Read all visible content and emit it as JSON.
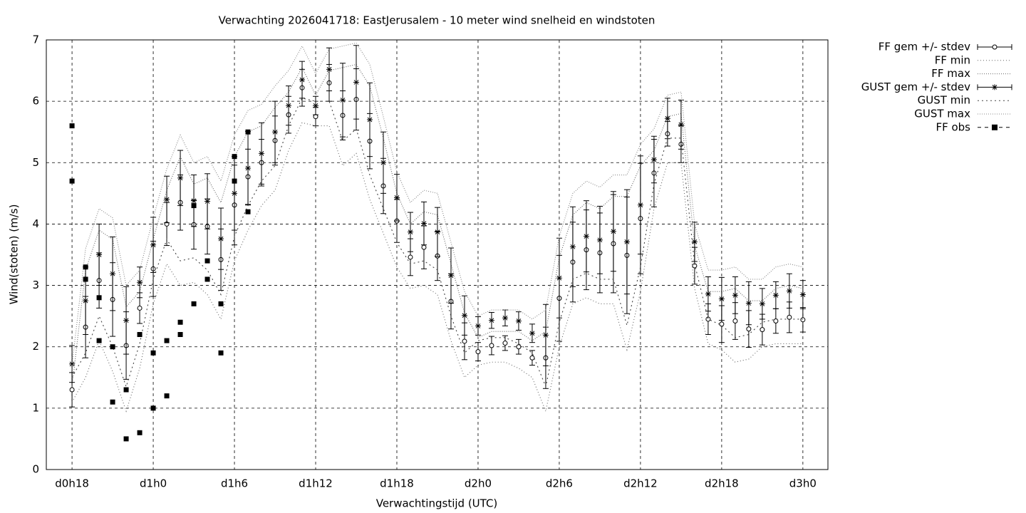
{
  "chart_data": {
    "type": "errorbar",
    "title": "Verwachting 2026041718: EastJerusalem - 10 meter wind snelheid en windstoten",
    "xlabel": "Verwachtingstijd (UTC)",
    "ylabel": "Wind(stoten) (m/s)",
    "xlim": [
      -1.9,
      55.85
    ],
    "xticks": [
      {
        "value": 0,
        "label": "d0h18"
      },
      {
        "value": 6,
        "label": "d1h0"
      },
      {
        "value": 12,
        "label": "d1h6"
      },
      {
        "value": 18,
        "label": "d1h12"
      },
      {
        "value": 24,
        "label": "d1h18"
      },
      {
        "value": 30,
        "label": "d2h0"
      },
      {
        "value": 36,
        "label": "d2h6"
      },
      {
        "value": 42,
        "label": "d2h12"
      },
      {
        "value": 48,
        "label": "d2h18"
      },
      {
        "value": 54,
        "label": "d3h0"
      }
    ],
    "ylim": [
      0,
      7
    ],
    "yticks": [
      0,
      1,
      2,
      3,
      4,
      5,
      6,
      7
    ],
    "grid": true,
    "legend": "outside-right-top",
    "x": [
      0,
      1,
      2,
      3,
      4,
      5,
      6,
      7,
      8,
      9,
      10,
      11,
      12,
      13,
      14,
      15,
      16,
      17,
      18,
      19,
      20,
      21,
      22,
      23,
      24,
      25,
      26,
      27,
      28,
      29,
      30,
      31,
      32,
      33,
      34,
      35,
      36,
      37,
      38,
      39,
      40,
      41,
      42,
      43,
      44,
      45,
      46,
      47,
      48,
      49,
      50,
      51,
      52,
      53,
      54
    ],
    "series": [
      {
        "name": "FF gem +/- stdev",
        "style": "errorbar",
        "marker": "circle",
        "color": "#000000",
        "values": [
          1.3,
          2.32,
          3.08,
          2.77,
          2.02,
          2.63,
          3.27,
          4.0,
          4.35,
          3.99,
          3.96,
          3.42,
          4.31,
          4.77,
          5.0,
          5.36,
          5.78,
          6.22,
          5.75,
          6.3,
          5.77,
          6.03,
          5.35,
          4.62,
          4.05,
          3.46,
          3.62,
          3.48,
          2.74,
          2.09,
          1.92,
          2.02,
          2.06,
          2.0,
          1.82,
          1.82,
          2.79,
          3.38,
          3.58,
          3.53,
          3.68,
          3.49,
          4.09,
          4.83,
          5.47,
          5.3,
          3.32,
          2.45,
          2.37,
          2.42,
          2.29,
          2.28,
          2.42,
          2.48,
          2.44
        ],
        "errors": [
          0.28,
          0.5,
          0.45,
          0.6,
          0.55,
          0.25,
          0.45,
          0.35,
          0.45,
          0.4,
          0.45,
          0.5,
          0.65,
          0.45,
          0.38,
          0.4,
          0.3,
          0.3,
          0.15,
          0.3,
          0.4,
          0.5,
          0.45,
          0.45,
          0.35,
          0.3,
          0.35,
          0.4,
          0.45,
          0.3,
          0.15,
          0.15,
          0.12,
          0.12,
          0.12,
          0.5,
          0.7,
          0.65,
          0.65,
          0.65,
          0.8,
          0.95,
          0.9,
          0.55,
          0.2,
          0.3,
          0.3,
          0.25,
          0.3,
          0.3,
          0.3,
          0.25,
          0.2,
          0.25,
          0.2
        ]
      },
      {
        "name": "FF min",
        "style": "dotted",
        "color": "#666666",
        "values": [
          1.1,
          1.5,
          2.1,
          1.6,
          0.95,
          1.65,
          2.7,
          3.35,
          3.0,
          3.05,
          2.85,
          2.45,
          3.4,
          3.9,
          4.3,
          4.55,
          5.2,
          5.65,
          5.6,
          5.6,
          4.95,
          5.15,
          4.4,
          3.85,
          3.3,
          2.95,
          3.0,
          2.85,
          2.1,
          1.5,
          1.7,
          1.75,
          1.75,
          1.65,
          1.5,
          0.95,
          2.0,
          2.7,
          2.8,
          2.7,
          2.7,
          1.95,
          2.9,
          4.25,
          5.0,
          5.0,
          2.95,
          2.05,
          1.95,
          1.75,
          1.8,
          2.0,
          2.05,
          2.05,
          2.05
        ]
      },
      {
        "name": "FF max",
        "style": "dotted",
        "color": "#666666",
        "values": [
          1.35,
          3.25,
          3.9,
          3.75,
          2.65,
          2.9,
          3.75,
          4.55,
          5.1,
          4.65,
          4.75,
          4.35,
          5.1,
          5.5,
          5.6,
          5.9,
          6.15,
          6.55,
          6.1,
          6.5,
          6.55,
          6.6,
          6.25,
          5.4,
          4.5,
          4.0,
          4.2,
          4.15,
          3.35,
          2.55,
          2.15,
          2.25,
          2.25,
          2.25,
          2.1,
          2.25,
          3.45,
          4.15,
          4.35,
          4.25,
          4.45,
          4.45,
          4.95,
          5.2,
          5.75,
          5.8,
          3.65,
          2.9,
          2.9,
          2.95,
          2.75,
          2.75,
          2.95,
          3.0,
          2.95
        ]
      },
      {
        "name": "GUST gem +/- stdev",
        "style": "errorbar",
        "marker": "star",
        "color": "#000000",
        "values": [
          1.72,
          2.75,
          3.5,
          3.19,
          2.43,
          3.05,
          3.66,
          4.4,
          4.75,
          4.38,
          4.37,
          3.76,
          4.5,
          4.91,
          5.15,
          5.5,
          5.93,
          6.35,
          5.93,
          6.52,
          6.02,
          6.31,
          5.7,
          5.0,
          4.43,
          3.87,
          4.01,
          3.87,
          3.16,
          2.51,
          2.34,
          2.43,
          2.47,
          2.42,
          2.22,
          2.19,
          3.12,
          3.63,
          3.8,
          3.74,
          3.88,
          3.71,
          4.31,
          5.05,
          5.72,
          5.62,
          3.71,
          2.86,
          2.78,
          2.84,
          2.71,
          2.7,
          2.84,
          2.91,
          2.85
        ],
        "errors": [
          0.3,
          0.55,
          0.5,
          0.6,
          0.55,
          0.25,
          0.45,
          0.38,
          0.45,
          0.42,
          0.45,
          0.5,
          0.6,
          0.6,
          0.5,
          0.5,
          0.32,
          0.3,
          0.15,
          0.35,
          0.6,
          0.6,
          0.6,
          0.5,
          0.38,
          0.32,
          0.35,
          0.4,
          0.45,
          0.32,
          0.15,
          0.13,
          0.13,
          0.15,
          0.15,
          0.5,
          0.65,
          0.65,
          0.58,
          0.55,
          0.65,
          0.85,
          0.8,
          0.38,
          0.33,
          0.4,
          0.32,
          0.28,
          0.35,
          0.3,
          0.35,
          0.25,
          0.22,
          0.28,
          0.23
        ]
      },
      {
        "name": "GUST min",
        "style": "dotted",
        "color": "#444444",
        "values": [
          1.5,
          1.9,
          2.5,
          2.0,
          1.35,
          2.05,
          3.1,
          3.75,
          3.4,
          3.45,
          3.25,
          2.85,
          3.8,
          4.3,
          4.7,
          4.95,
          5.6,
          6.05,
          6.0,
          6.0,
          5.35,
          5.55,
          4.8,
          4.25,
          3.7,
          3.35,
          3.4,
          3.25,
          2.5,
          1.9,
          2.1,
          2.15,
          2.15,
          2.05,
          1.9,
          1.35,
          2.4,
          3.1,
          3.2,
          3.1,
          3.1,
          2.35,
          3.3,
          4.65,
          5.4,
          5.4,
          3.35,
          2.45,
          2.35,
          2.15,
          2.2,
          2.4,
          2.45,
          2.45,
          2.45
        ]
      },
      {
        "name": "GUST max",
        "style": "dotted",
        "color": "#888888",
        "values": [
          1.7,
          3.6,
          4.25,
          4.1,
          3.0,
          3.25,
          4.1,
          4.9,
          5.45,
          5.0,
          5.1,
          4.7,
          5.45,
          5.85,
          5.95,
          6.25,
          6.5,
          6.9,
          6.45,
          6.85,
          6.9,
          6.95,
          6.6,
          5.75,
          4.85,
          4.35,
          4.55,
          4.5,
          3.7,
          2.9,
          2.5,
          2.6,
          2.6,
          2.6,
          2.45,
          2.6,
          3.8,
          4.5,
          4.7,
          4.6,
          4.8,
          4.8,
          5.3,
          5.55,
          6.1,
          6.15,
          4.0,
          3.25,
          3.25,
          3.3,
          3.1,
          3.1,
          3.3,
          3.35,
          3.3
        ]
      },
      {
        "name": "FF obs",
        "style": "points",
        "marker": "square",
        "color": "#000000",
        "x": [
          0,
          0,
          1,
          1,
          2,
          2,
          3,
          3,
          4,
          4,
          5,
          5,
          6,
          6,
          7,
          7,
          8,
          8,
          9,
          9,
          10,
          10,
          11,
          11,
          12,
          12,
          13,
          13
        ],
        "values": [
          5.6,
          4.7,
          3.3,
          3.1,
          2.8,
          2.1,
          2.0,
          1.1,
          1.3,
          0.5,
          2.2,
          0.6,
          1.9,
          1.0,
          2.1,
          1.2,
          2.4,
          2.2,
          4.3,
          2.7,
          3.4,
          3.1,
          2.7,
          1.9,
          5.1,
          4.7,
          5.5,
          4.2
        ]
      }
    ]
  }
}
